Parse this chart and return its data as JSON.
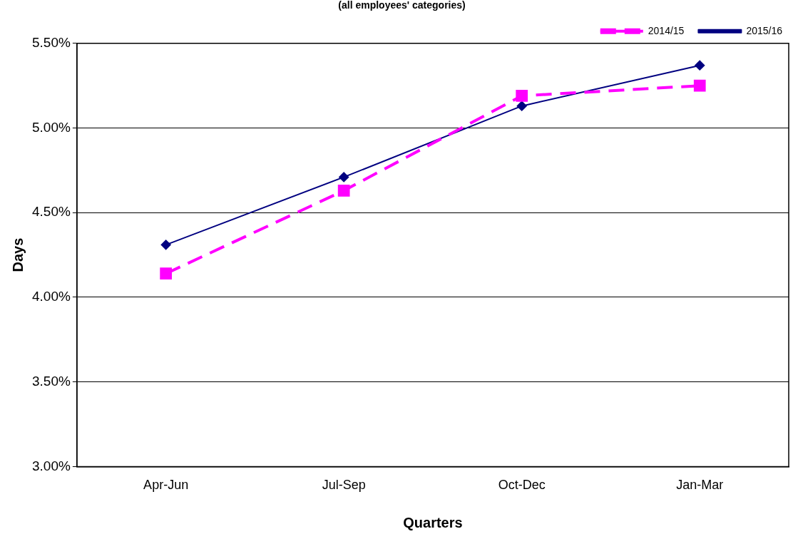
{
  "chart_data": {
    "type": "line",
    "title": "(all employees' categories)",
    "xlabel": "Quarters",
    "ylabel": "Days",
    "categories": [
      "Apr-Jun",
      "Jul-Sep",
      "Oct-Dec",
      "Jan-Mar"
    ],
    "series": [
      {
        "name": "2014/15",
        "color": "#ff00ff",
        "values": [
          4.14,
          4.63,
          5.19,
          5.25
        ],
        "marker": "square",
        "line_style": "dashed"
      },
      {
        "name": "2015/16",
        "color": "#000080",
        "values": [
          4.31,
          4.71,
          5.13,
          5.37
        ],
        "marker": "diamond",
        "line_style": "solid"
      }
    ],
    "ylim": [
      3,
      5.5
    ],
    "yticks": [
      {
        "value": 3,
        "label": "3.00%"
      },
      {
        "value": 3.5,
        "label": "3.50%"
      },
      {
        "value": 4,
        "label": "4.00%"
      },
      {
        "value": 4.5,
        "label": "4.50%"
      },
      {
        "value": 5,
        "label": "5.00%"
      },
      {
        "value": 5.5,
        "label": "5.50%"
      }
    ],
    "grid": "y",
    "legend": "top right"
  }
}
